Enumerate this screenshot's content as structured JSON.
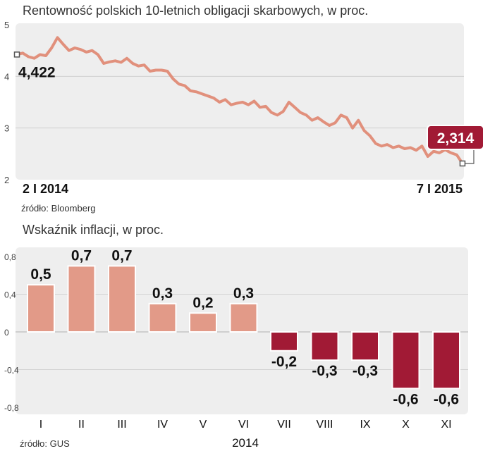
{
  "chart_data": [
    {
      "type": "line",
      "title": "Rentowność polskich 10-letnich obligacji skarbowych, w proc.",
      "source": "źródło: Bloomberg",
      "ylim": [
        2,
        5
      ],
      "yticks": [
        "5",
        "4",
        "3",
        "2"
      ],
      "x_start_label": "2 I 2014",
      "x_end_label": "7 I 2015",
      "start_value": 4.422,
      "start_label": "4,422",
      "end_value": 2.314,
      "end_label": "2,314",
      "series": [
        {
          "name": "Rentowność",
          "values": [
            4.42,
            4.45,
            4.38,
            4.35,
            4.42,
            4.4,
            4.55,
            4.75,
            4.62,
            4.5,
            4.55,
            4.52,
            4.47,
            4.5,
            4.42,
            4.25,
            4.28,
            4.3,
            4.27,
            4.35,
            4.25,
            4.2,
            4.22,
            4.1,
            4.12,
            4.12,
            4.1,
            3.95,
            3.85,
            3.82,
            3.72,
            3.7,
            3.66,
            3.62,
            3.58,
            3.5,
            3.55,
            3.45,
            3.48,
            3.5,
            3.45,
            3.52,
            3.4,
            3.42,
            3.3,
            3.25,
            3.32,
            3.5,
            3.4,
            3.3,
            3.25,
            3.15,
            3.2,
            3.12,
            3.05,
            3.1,
            3.25,
            3.2,
            3.0,
            3.15,
            2.95,
            2.85,
            2.7,
            2.65,
            2.68,
            2.62,
            2.65,
            2.6,
            2.62,
            2.57,
            2.65,
            2.45,
            2.55,
            2.52,
            2.58,
            2.52,
            2.48,
            2.314
          ]
        }
      ]
    },
    {
      "type": "bar",
      "title": "Wskaźnik inflacji, w proc.",
      "source": "źródło: GUS",
      "xlabel": "2014",
      "ylim": [
        -0.8,
        0.8
      ],
      "yticks": [
        "0,8",
        "0,4",
        "0",
        "-0,4",
        "-0,8"
      ],
      "categories": [
        "I",
        "II",
        "III",
        "IV",
        "V",
        "VI",
        "VII",
        "VIII",
        "IX",
        "X",
        "XI"
      ],
      "values": [
        0.5,
        0.7,
        0.7,
        0.3,
        0.2,
        0.3,
        -0.2,
        -0.3,
        -0.3,
        -0.6,
        -0.6
      ],
      "value_labels": [
        "0,5",
        "0,7",
        "0,7",
        "0,3",
        "0,2",
        "0,3",
        "-0,2",
        "-0,3",
        "-0,3",
        "-0,6",
        "-0,6"
      ],
      "colors": {
        "positive": "#e29a88",
        "negative": "#a11a35"
      }
    }
  ],
  "colors": {
    "panel": "#eeeeee",
    "line": "#e1907c",
    "accent": "#a11a35"
  }
}
